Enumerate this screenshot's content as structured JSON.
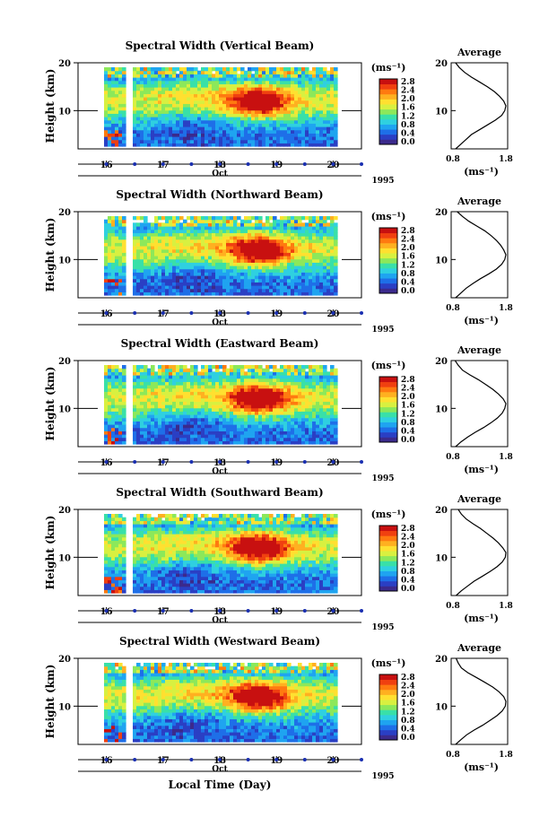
{
  "figure": {
    "xlabel": "Local Time (Day)"
  },
  "colorbar": {
    "unit_label": "(ms⁻¹)",
    "ticks": [
      "0.0",
      "0.4",
      "0.8",
      "1.2",
      "1.6",
      "2.0",
      "2.4",
      "2.8"
    ],
    "colors": [
      "#3b2a8c",
      "#2a3fc4",
      "#1e6fe8",
      "#1fa4f0",
      "#2fd0e0",
      "#39e0a8",
      "#8ce85a",
      "#d8f040",
      "#ffe030",
      "#ffb020",
      "#ff7a10",
      "#f04010",
      "#c81010"
    ]
  },
  "chart_data": [
    {
      "type": "heatmap",
      "title": "Spectral Width (Vertical Beam)",
      "ylabel": "Height (km)",
      "ytick_labels": [
        "10",
        "20"
      ],
      "xtick_labels": [
        "16",
        "17",
        "18",
        "19",
        "20"
      ],
      "month_label": "Oct",
      "year_label": "1995",
      "ylim": [
        2,
        20
      ],
      "xlim": [
        15.5,
        20.5
      ],
      "z_range": [
        0.0,
        2.8
      ],
      "profile": {
        "title": "Average",
        "xlabel": "(ms⁻¹)",
        "xtick_labels": [
          "0.8",
          "1.8"
        ],
        "ytick_labels": [
          "10",
          "20"
        ],
        "xlim": [
          0.8,
          1.8
        ],
        "heights": [
          2,
          3,
          4,
          5,
          6,
          7,
          8,
          9,
          10,
          11,
          12,
          13,
          14,
          15,
          16,
          17,
          18,
          19,
          20
        ],
        "values": [
          0.85,
          0.95,
          1.05,
          1.15,
          1.3,
          1.45,
          1.6,
          1.72,
          1.78,
          1.8,
          1.76,
          1.68,
          1.58,
          1.45,
          1.3,
          1.15,
          1.02,
          0.92,
          0.85
        ]
      }
    },
    {
      "type": "heatmap",
      "title": "Spectral Width (Northward Beam)",
      "ylabel": "Height (km)",
      "ytick_labels": [
        "10",
        "20"
      ],
      "xtick_labels": [
        "16",
        "17",
        "18",
        "19",
        "20"
      ],
      "month_label": "Oct",
      "year_label": "1995",
      "ylim": [
        2,
        20
      ],
      "xlim": [
        15.5,
        20.5
      ],
      "z_range": [
        0.0,
        2.8
      ],
      "profile": {
        "title": "Average",
        "xlabel": "(ms⁻¹)",
        "xtick_labels": [
          "0.8",
          "1.8"
        ],
        "ytick_labels": [
          "10",
          "20"
        ],
        "xlim": [
          0.8,
          1.8
        ],
        "heights": [
          2,
          3,
          4,
          5,
          6,
          7,
          8,
          9,
          10,
          11,
          12,
          13,
          14,
          15,
          16,
          17,
          18,
          19,
          20
        ],
        "values": [
          0.85,
          0.95,
          1.05,
          1.18,
          1.32,
          1.48,
          1.62,
          1.72,
          1.78,
          1.8,
          1.76,
          1.7,
          1.62,
          1.52,
          1.4,
          1.25,
          1.1,
          0.98,
          0.88
        ]
      }
    },
    {
      "type": "heatmap",
      "title": "Spectral Width (Eastward Beam)",
      "ylabel": "Height (km)",
      "ytick_labels": [
        "10",
        "20"
      ],
      "xtick_labels": [
        "16",
        "17",
        "18",
        "19",
        "20"
      ],
      "month_label": "Oct",
      "year_label": "1995",
      "ylim": [
        2,
        20
      ],
      "xlim": [
        15.5,
        20.5
      ],
      "z_range": [
        0.0,
        2.8
      ],
      "profile": {
        "title": "Average",
        "xlabel": "(ms⁻¹)",
        "xtick_labels": [
          "0.8",
          "1.8"
        ],
        "ytick_labels": [
          "10",
          "20"
        ],
        "xlim": [
          0.8,
          1.8
        ],
        "heights": [
          2,
          3,
          4,
          5,
          6,
          7,
          8,
          9,
          10,
          11,
          12,
          13,
          14,
          15,
          16,
          17,
          18,
          19,
          20
        ],
        "values": [
          0.85,
          0.95,
          1.08,
          1.22,
          1.38,
          1.52,
          1.64,
          1.73,
          1.78,
          1.8,
          1.75,
          1.66,
          1.55,
          1.42,
          1.28,
          1.12,
          0.98,
          0.9,
          0.84
        ]
      }
    },
    {
      "type": "heatmap",
      "title": "Spectral Width (Southward Beam)",
      "ylabel": "Height (km)",
      "ytick_labels": [
        "10",
        "20"
      ],
      "xtick_labels": [
        "16",
        "17",
        "18",
        "19",
        "20"
      ],
      "month_label": "Oct",
      "year_label": "1995",
      "ylim": [
        2,
        20
      ],
      "xlim": [
        15.5,
        20.5
      ],
      "z_range": [
        0.0,
        2.8
      ],
      "profile": {
        "title": "Average",
        "xlabel": "(ms⁻¹)",
        "xtick_labels": [
          "0.8",
          "1.8"
        ],
        "ytick_labels": [
          "10",
          "20"
        ],
        "xlim": [
          0.8,
          1.8
        ],
        "heights": [
          2,
          3,
          4,
          5,
          6,
          7,
          8,
          9,
          10,
          11,
          12,
          13,
          14,
          15,
          16,
          17,
          18,
          19,
          20
        ],
        "values": [
          0.86,
          0.96,
          1.08,
          1.2,
          1.35,
          1.5,
          1.63,
          1.73,
          1.79,
          1.8,
          1.74,
          1.66,
          1.56,
          1.44,
          1.32,
          1.18,
          1.05,
          0.96,
          0.9
        ]
      }
    },
    {
      "type": "heatmap",
      "title": "Spectral Width (Westward Beam)",
      "ylabel": "Height (km)",
      "ytick_labels": [
        "10",
        "20"
      ],
      "xtick_labels": [
        "16",
        "17",
        "18",
        "19",
        "20"
      ],
      "month_label": "Oct",
      "year_label": "1995",
      "ylim": [
        2,
        20
      ],
      "xlim": [
        15.5,
        20.5
      ],
      "z_range": [
        0.0,
        2.8
      ],
      "profile": {
        "title": "Average",
        "xlabel": "(ms⁻¹)",
        "xtick_labels": [
          "0.8",
          "1.8"
        ],
        "ytick_labels": [
          "10",
          "20"
        ],
        "xlim": [
          0.8,
          1.8
        ],
        "heights": [
          2,
          3,
          4,
          5,
          6,
          7,
          8,
          9,
          10,
          11,
          12,
          13,
          14,
          15,
          16,
          17,
          18,
          19,
          20
        ],
        "values": [
          0.85,
          0.95,
          1.06,
          1.2,
          1.36,
          1.5,
          1.63,
          1.73,
          1.79,
          1.8,
          1.76,
          1.67,
          1.55,
          1.4,
          1.24,
          1.08,
          0.96,
          0.9,
          0.86
        ]
      }
    }
  ]
}
